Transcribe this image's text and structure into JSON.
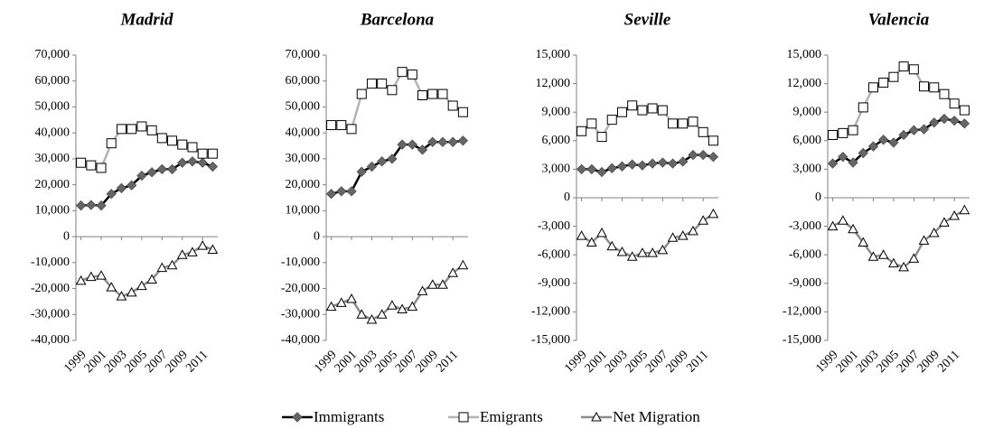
{
  "chart_data": [
    {
      "type": "line",
      "title": "Madrid",
      "x": [
        1999,
        2000,
        2001,
        2002,
        2003,
        2004,
        2005,
        2006,
        2007,
        2008,
        2009,
        2010,
        2011,
        2012
      ],
      "xlim": [
        1998.5,
        2012.5
      ],
      "xticks": [
        1999,
        2001,
        2003,
        2005,
        2007,
        2009,
        2011
      ],
      "ylim": [
        -40000,
        70000
      ],
      "yticks": [
        {
          "value": 70000,
          "label": "70,000"
        },
        {
          "value": 60000,
          "label": "60,000"
        },
        {
          "value": 50000,
          "label": "50,000"
        },
        {
          "value": 40000,
          "label": "40,000"
        },
        {
          "value": 30000,
          "label": "30,000"
        },
        {
          "value": 20000,
          "label": "20,000"
        },
        {
          "value": 10000,
          "label": "10,000"
        },
        0,
        {
          "value": -10000,
          "label": "-10,000"
        },
        {
          "value": -20000,
          "label": "-20,000"
        },
        {
          "value": -30000,
          "label": "-30,000"
        },
        {
          "value": -40000,
          "label": "-40,000"
        }
      ],
      "series": [
        {
          "name": "Immigrants",
          "color": "#000000",
          "marker": "diamond",
          "values": [
            12000,
            12200,
            12000,
            16500,
            18700,
            19800,
            23500,
            24800,
            26000,
            26000,
            28500,
            29000,
            28500,
            27000
          ]
        },
        {
          "name": "Emigrants",
          "color": "#b3b3b3",
          "marker": "square",
          "values": [
            28500,
            27500,
            26500,
            36000,
            41500,
            41500,
            42500,
            41000,
            38000,
            37000,
            35500,
            34500,
            32000,
            32000
          ]
        },
        {
          "name": "Net Migration",
          "color": "#8c8c8c",
          "marker": "triangle",
          "values": [
            -17000,
            -15500,
            -15000,
            -19500,
            -23000,
            -21500,
            -19000,
            -16500,
            -12000,
            -11000,
            -7000,
            -6000,
            -3500,
            -5000
          ]
        }
      ]
    },
    {
      "type": "line",
      "title": "Barcelona",
      "x": [
        1999,
        2000,
        2001,
        2002,
        2003,
        2004,
        2005,
        2006,
        2007,
        2008,
        2009,
        2010,
        2011,
        2012
      ],
      "xlim": [
        1998.5,
        2012.5
      ],
      "xticks": [
        1999,
        2001,
        2003,
        2005,
        2007,
        2009,
        2011
      ],
      "ylim": [
        -40000,
        70000
      ],
      "yticks": [
        {
          "value": 70000,
          "label": "70,000"
        },
        {
          "value": 60000,
          "label": "60,000"
        },
        {
          "value": 50000,
          "label": "50,000"
        },
        {
          "value": 40000,
          "label": "40,000"
        },
        {
          "value": 30000,
          "label": "30,000"
        },
        {
          "value": 20000,
          "label": "20,000"
        },
        {
          "value": 10000,
          "label": "10,000"
        },
        0,
        {
          "value": -10000,
          "label": "-10,000"
        },
        {
          "value": -20000,
          "label": "-20,000"
        },
        {
          "value": -30000,
          "label": "-30,000"
        },
        {
          "value": -40000,
          "label": "-40,000"
        }
      ],
      "series": [
        {
          "name": "Immigrants",
          "color": "#000000",
          "marker": "diamond",
          "values": [
            16500,
            17500,
            17500,
            25000,
            27000,
            29000,
            30000,
            35500,
            35500,
            33500,
            36500,
            36500,
            36500,
            37000
          ]
        },
        {
          "name": "Emigrants",
          "color": "#b3b3b3",
          "marker": "square",
          "values": [
            43000,
            43000,
            41500,
            55000,
            59000,
            59000,
            56500,
            63500,
            62500,
            54500,
            55000,
            55000,
            50500,
            48000
          ]
        },
        {
          "name": "Net Migration",
          "color": "#8c8c8c",
          "marker": "triangle",
          "values": [
            -27000,
            -25500,
            -24000,
            -30000,
            -32000,
            -30000,
            -26500,
            -28000,
            -27000,
            -21000,
            -18500,
            -18500,
            -14000,
            -11000
          ]
        }
      ]
    },
    {
      "type": "line",
      "title": "Seville",
      "x": [
        1999,
        2000,
        2001,
        2002,
        2003,
        2004,
        2005,
        2006,
        2007,
        2008,
        2009,
        2010,
        2011,
        2012
      ],
      "xlim": [
        1998.5,
        2012.5
      ],
      "xticks": [
        1999,
        2001,
        2003,
        2005,
        2007,
        2009,
        2011
      ],
      "ylim": [
        -15000,
        15000
      ],
      "yticks": [
        {
          "value": 15000,
          "label": "15,000"
        },
        {
          "value": 12000,
          "label": "12,000"
        },
        {
          "value": 9000,
          "label": "9,000"
        },
        {
          "value": 6000,
          "label": "6,000"
        },
        {
          "value": 3000,
          "label": "3,000"
        },
        0,
        {
          "value": -3000,
          "label": "-3,000"
        },
        {
          "value": -6000,
          "label": "-6,000"
        },
        {
          "value": -9000,
          "label": "-9,000"
        },
        {
          "value": -12000,
          "label": "-12,000"
        },
        {
          "value": -15000,
          "label": "-15,000"
        }
      ],
      "series": [
        {
          "name": "Immigrants",
          "color": "#000000",
          "marker": "diamond",
          "values": [
            3000,
            3000,
            2700,
            3100,
            3300,
            3500,
            3400,
            3600,
            3700,
            3600,
            3800,
            4500,
            4500,
            4300
          ]
        },
        {
          "name": "Emigrants",
          "color": "#b3b3b3",
          "marker": "square",
          "values": [
            7000,
            7800,
            6400,
            8200,
            9000,
            9700,
            9200,
            9400,
            9200,
            7800,
            7800,
            8000,
            6900,
            6000
          ]
        },
        {
          "name": "Net Migration",
          "color": "#8c8c8c",
          "marker": "triangle",
          "values": [
            -4000,
            -4700,
            -3700,
            -5100,
            -5700,
            -6200,
            -5800,
            -5800,
            -5500,
            -4200,
            -4000,
            -3500,
            -2400,
            -1700
          ]
        }
      ]
    },
    {
      "type": "line",
      "title": "Valencia",
      "x": [
        1999,
        2000,
        2001,
        2002,
        2003,
        2004,
        2005,
        2006,
        2007,
        2008,
        2009,
        2010,
        2011,
        2012
      ],
      "xlim": [
        1998.5,
        2012.5
      ],
      "xticks": [
        1999,
        2001,
        2003,
        2005,
        2007,
        2009,
        2011
      ],
      "ylim": [
        -15000,
        15000
      ],
      "yticks": [
        {
          "value": 15000,
          "label": "15,000"
        },
        {
          "value": 12000,
          "label": "12,000"
        },
        {
          "value": 9000,
          "label": "9,000"
        },
        {
          "value": 6000,
          "label": "6,000"
        },
        {
          "value": 3000,
          "label": "3,000"
        },
        0,
        {
          "value": -3000,
          "label": "-3,000"
        },
        {
          "value": -6000,
          "label": "-6,000"
        },
        {
          "value": -9000,
          "label": "-9,000"
        },
        {
          "value": -12000,
          "label": "-12,000"
        },
        {
          "value": -15000,
          "label": "-15,000"
        }
      ],
      "series": [
        {
          "name": "Immigrants",
          "color": "#000000",
          "marker": "diamond",
          "values": [
            3600,
            4300,
            3700,
            4700,
            5400,
            6100,
            5800,
            6600,
            7100,
            7200,
            7900,
            8300,
            8100,
            7800
          ]
        },
        {
          "name": "Emigrants",
          "color": "#b3b3b3",
          "marker": "square",
          "values": [
            6600,
            6800,
            7100,
            9500,
            11600,
            12100,
            12700,
            13800,
            13500,
            11700,
            11600,
            10900,
            9900,
            9200
          ]
        },
        {
          "name": "Net Migration",
          "color": "#8c8c8c",
          "marker": "triangle",
          "values": [
            -3000,
            -2400,
            -3300,
            -4700,
            -6200,
            -6000,
            -6900,
            -7300,
            -6400,
            -4500,
            -3700,
            -2600,
            -1900,
            -1300
          ]
        }
      ]
    }
  ]
}
